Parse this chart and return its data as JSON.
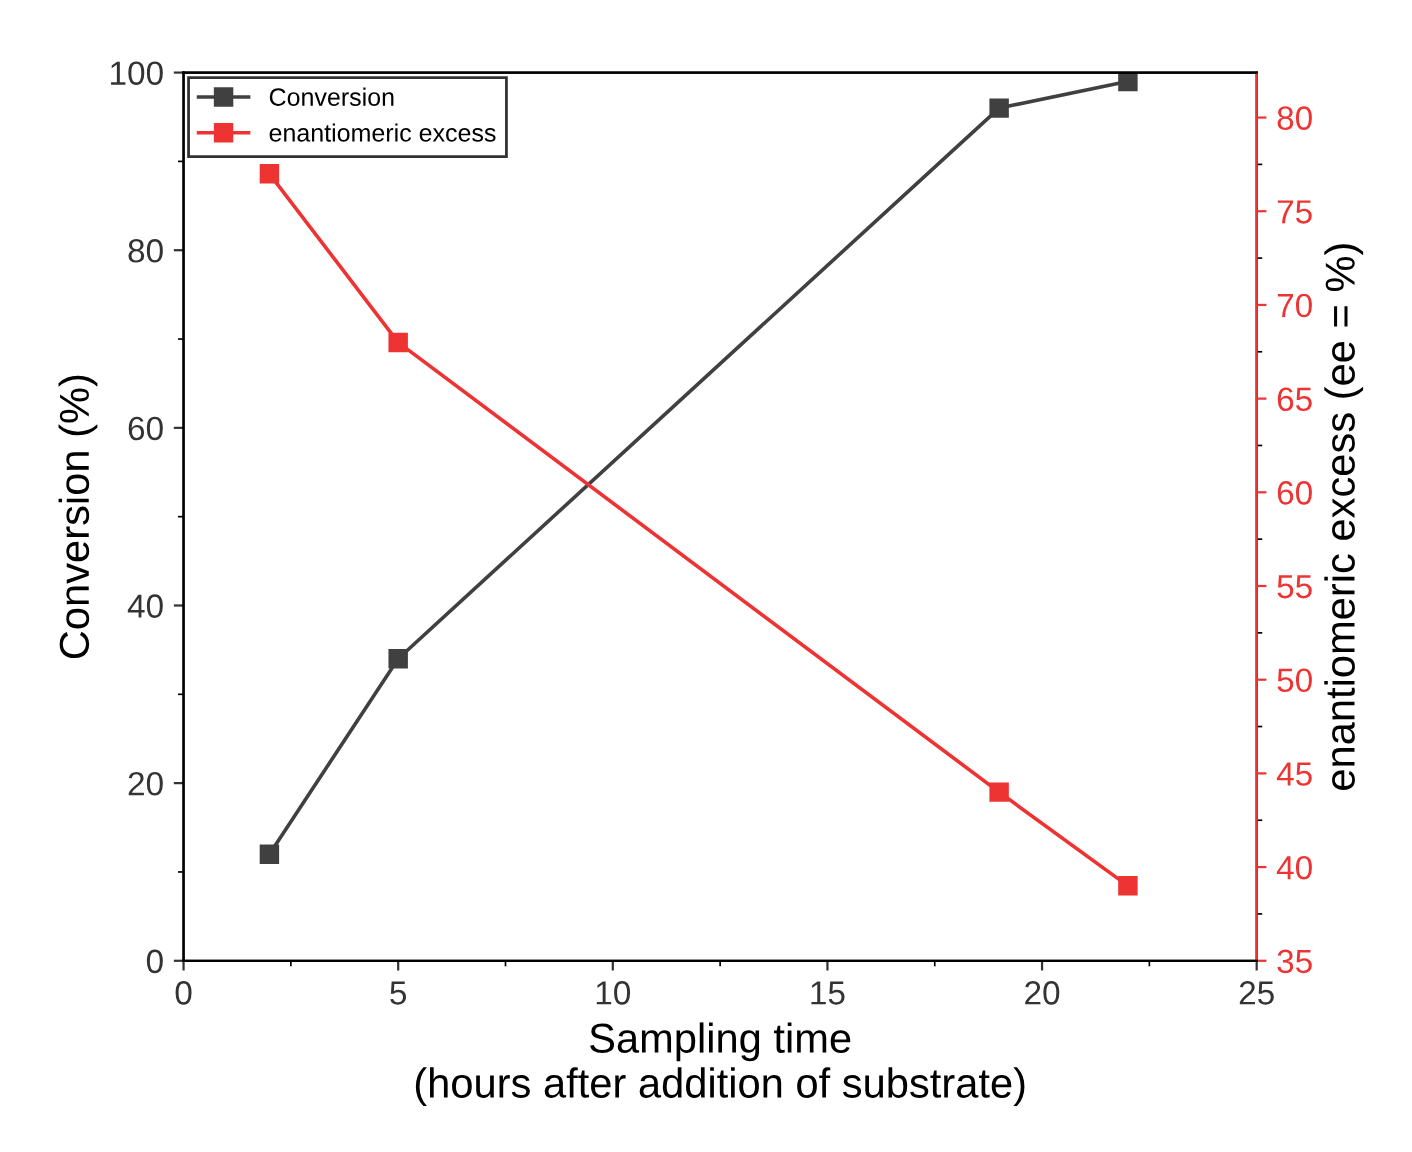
{
  "chart_data": {
    "type": "line",
    "xlabel": "Sampling time\n(hours after addition of substrate)",
    "ylabel": "Conversion (%)",
    "y2label": "enantiomeric excess (ee = %)",
    "x": [
      2,
      5,
      19,
      22
    ],
    "series": [
      {
        "name": "Conversion",
        "color": "#404040",
        "values": [
          12,
          34,
          96,
          99
        ]
      },
      {
        "name": "enantiomeric excess",
        "color": "#ee3333",
        "axis": "y2",
        "values": [
          77,
          68,
          44,
          39
        ]
      }
    ],
    "xlim": [
      0,
      25
    ],
    "xticks": [
      0,
      5,
      10,
      15,
      20,
      25
    ],
    "ylim": [
      0,
      100
    ],
    "yticks": [
      0,
      20,
      40,
      60,
      80,
      100
    ],
    "y2lim": [
      35,
      82.4
    ],
    "y2ticks": [
      35,
      40,
      45,
      50,
      55,
      60,
      65,
      70,
      75,
      80
    ],
    "marker": "square",
    "line_style": "solid",
    "legend": "top left",
    "grid": false
  }
}
